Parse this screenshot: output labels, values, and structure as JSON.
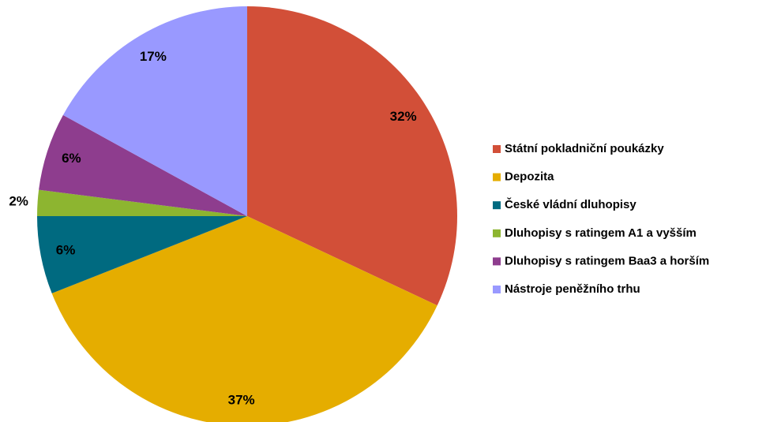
{
  "chart_data": {
    "type": "pie",
    "categories": [
      "Státní pokladniční poukázky",
      "Depozita",
      "České vládní dluhopisy",
      "Dluhopisy  s ratingem A1 a vyšším",
      "Dluhopisy s ratingem Baa3 a horším",
      "Nástroje peněžního trhu"
    ],
    "values": [
      32,
      37,
      6,
      2,
      6,
      17
    ],
    "value_labels": [
      "32%",
      "37%",
      "6%",
      "2%",
      "6%",
      "17%"
    ],
    "colors": [
      "#d24f38",
      "#e5ad00",
      "#006a80",
      "#8db530",
      "#8e3d8e",
      "#9999ff"
    ],
    "legend": "right"
  }
}
